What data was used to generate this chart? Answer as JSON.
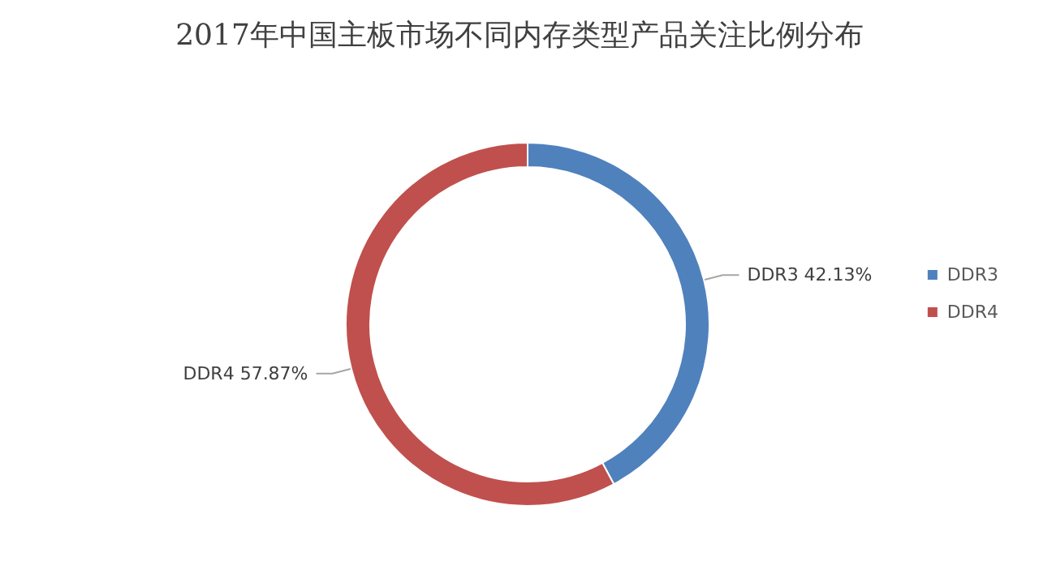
{
  "chart_data": {
    "type": "donut",
    "title": "2017年中国主板市场不同内存类型产品关注比例分布",
    "categories": [
      "DDR3",
      "DDR4"
    ],
    "values": [
      42.13,
      57.87
    ],
    "value_labels": [
      "42.13%",
      "57.87%"
    ],
    "colors": [
      "#4f81bd",
      "#c0504d"
    ],
    "legend": "right"
  }
}
